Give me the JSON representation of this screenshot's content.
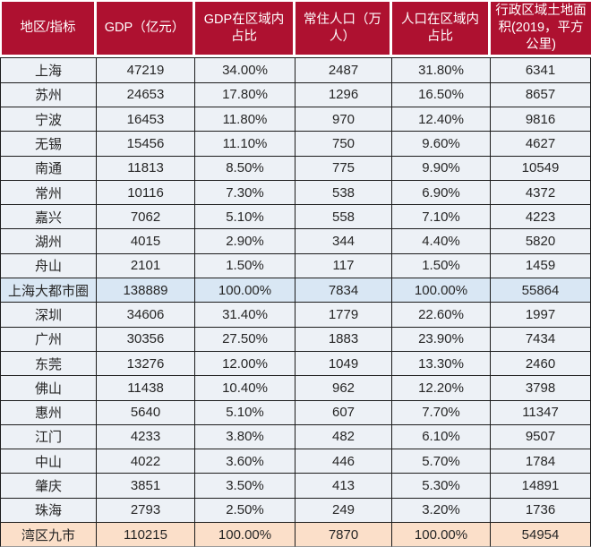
{
  "chart_data": {
    "type": "table",
    "columns": [
      "地区/指标",
      "GDP（亿元）",
      "GDP在区域内占比",
      "常住人口（万人）",
      "人口在区域内占比",
      "行政区域土地面积(2019，平方公里)"
    ],
    "rows": [
      {
        "cells": [
          "上海",
          "47219",
          "34.00%",
          "2487",
          "31.80%",
          "6341"
        ],
        "style": "normal"
      },
      {
        "cells": [
          "苏州",
          "24653",
          "17.80%",
          "1296",
          "16.50%",
          "8657"
        ],
        "style": "normal"
      },
      {
        "cells": [
          "宁波",
          "16453",
          "11.80%",
          "970",
          "12.40%",
          "9816"
        ],
        "style": "normal"
      },
      {
        "cells": [
          "无锡",
          "15456",
          "11.10%",
          "750",
          "9.60%",
          "4627"
        ],
        "style": "normal"
      },
      {
        "cells": [
          "南通",
          "11813",
          "8.50%",
          "775",
          "9.90%",
          "10549"
        ],
        "style": "normal"
      },
      {
        "cells": [
          "常州",
          "10116",
          "7.30%",
          "538",
          "6.90%",
          "4372"
        ],
        "style": "normal"
      },
      {
        "cells": [
          "嘉兴",
          "7062",
          "5.10%",
          "558",
          "7.10%",
          "4223"
        ],
        "style": "normal"
      },
      {
        "cells": [
          "湖州",
          "4015",
          "2.90%",
          "344",
          "4.40%",
          "5820"
        ],
        "style": "normal"
      },
      {
        "cells": [
          "舟山",
          "2101",
          "1.50%",
          "117",
          "1.50%",
          "1459"
        ],
        "style": "normal"
      },
      {
        "cells": [
          "上海大都市圈",
          "138889",
          "100.00%",
          "7834",
          "100.00%",
          "55864"
        ],
        "style": "summary-blue"
      },
      {
        "cells": [
          "深圳",
          "34606",
          "31.40%",
          "1779",
          "22.60%",
          "1997"
        ],
        "style": "normal"
      },
      {
        "cells": [
          "广州",
          "30356",
          "27.50%",
          "1883",
          "23.90%",
          "7434"
        ],
        "style": "normal"
      },
      {
        "cells": [
          "东莞",
          "13276",
          "12.00%",
          "1049",
          "13.30%",
          "2460"
        ],
        "style": "normal"
      },
      {
        "cells": [
          "佛山",
          "11438",
          "10.40%",
          "962",
          "12.20%",
          "3798"
        ],
        "style": "normal"
      },
      {
        "cells": [
          "惠州",
          "5640",
          "5.10%",
          "607",
          "7.70%",
          "11347"
        ],
        "style": "normal"
      },
      {
        "cells": [
          "江门",
          "4233",
          "3.80%",
          "482",
          "6.10%",
          "9507"
        ],
        "style": "normal"
      },
      {
        "cells": [
          "中山",
          "4022",
          "3.60%",
          "446",
          "5.70%",
          "1784"
        ],
        "style": "normal"
      },
      {
        "cells": [
          "肇庆",
          "3851",
          "3.50%",
          "413",
          "5.30%",
          "14891"
        ],
        "style": "normal"
      },
      {
        "cells": [
          "珠海",
          "2793",
          "2.50%",
          "249",
          "3.20%",
          "1736"
        ],
        "style": "normal"
      },
      {
        "cells": [
          "湾区九市",
          "110215",
          "100.00%",
          "7870",
          "100.00%",
          "54954"
        ],
        "style": "summary-orange"
      }
    ],
    "legend": "highlight rows: 上海大都市圈 = blue summary, 湾区九市 = orange summary"
  },
  "colors": {
    "header_bg": "#ae1130",
    "header_text": "#ffffff",
    "row_bg": "#edf1f6",
    "summary_blue_bg": "#d9e7f4",
    "summary_orange_bg": "#fbdfc9",
    "border_dark": "#1c1c1c",
    "border_outer_bottom": "#9a9a9a",
    "body_text": "#262626"
  }
}
